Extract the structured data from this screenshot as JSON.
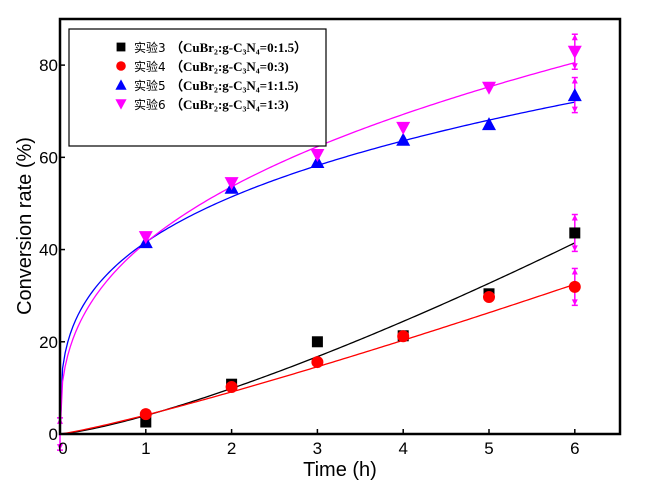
{
  "chart_data": {
    "type": "scatter",
    "title": "",
    "xlabel": "Time (h)",
    "ylabel": "Conversion rate (%)",
    "xlim": [
      0,
      6.5
    ],
    "ylim": [
      0,
      90
    ],
    "xticks": [
      0,
      1,
      2,
      3,
      4,
      5,
      6
    ],
    "xtick_labels": [
      "0",
      "1",
      "2",
      "3",
      "4",
      "5",
      "6"
    ],
    "yticks": [
      0,
      20,
      40,
      60,
      80
    ],
    "ytick_labels": [
      "0",
      "20",
      "40",
      "60",
      "80"
    ],
    "grid": false,
    "legend_position": "top-left",
    "series": [
      {
        "name": "实验3（CuBr2:g-C3N4=0:1.5）",
        "legend_cn": "实验3",
        "legend_formula": "（CuBr₂:g-C₃N₄=0:1.5）",
        "color": "#000000",
        "marker": "square",
        "x": [
          1,
          2,
          3,
          4,
          5,
          6
        ],
        "y": [
          2.6,
          10.8,
          20.0,
          21.3,
          30.4,
          43.6
        ],
        "error": [
          null,
          null,
          null,
          null,
          null,
          4.0
        ],
        "fit": {
          "type": "power",
          "a": 4.0,
          "b": 1.305
        }
      },
      {
        "name": "实验4（CuBr2:g-C3N4=0:3)",
        "legend_cn": "实验4",
        "legend_formula": "（CuBr₂:g-C₃N₄=0:3)",
        "color": "#ff0000",
        "marker": "circle",
        "x": [
          1,
          2,
          3,
          4,
          5,
          6
        ],
        "y": [
          4.3,
          10.2,
          15.6,
          21.2,
          29.7,
          31.9
        ],
        "error": [
          null,
          null,
          null,
          null,
          null,
          4.0
        ],
        "fit": {
          "type": "power",
          "a": 4.1,
          "b": 1.155
        }
      },
      {
        "name": "实验5（CuBr2:g-C3N4=1:1.5)",
        "legend_cn": "实验5",
        "legend_formula": "（CuBr₂:g-C₃N₄=1:1.5)",
        "color": "#0000ff",
        "marker": "triangle-up",
        "x": [
          1,
          2,
          3,
          4,
          5,
          6
        ],
        "y": [
          41.6,
          53.4,
          59.0,
          63.8,
          67.2,
          73.5
        ],
        "error": [
          null,
          null,
          null,
          null,
          null,
          3.8
        ],
        "fit": {
          "type": "power",
          "a": 41.6,
          "b": 0.306
        }
      },
      {
        "name": "实验6（CuBr2:g-C3N4=1:3)",
        "legend_cn": "实验6",
        "legend_formula": "（CuBr₂:g-C₃N₄=1:3)",
        "color": "#ff00ff",
        "marker": "triangle-down",
        "x": [
          0,
          1,
          2,
          3,
          4,
          5,
          6
        ],
        "y": [
          0,
          42.7,
          54.4,
          60.5,
          66.4,
          75.1,
          82.9
        ],
        "error": [
          3.5,
          null,
          null,
          null,
          null,
          null,
          3.8
        ],
        "fit": {
          "type": "power",
          "a": 41.5,
          "b": 0.37
        }
      }
    ]
  }
}
